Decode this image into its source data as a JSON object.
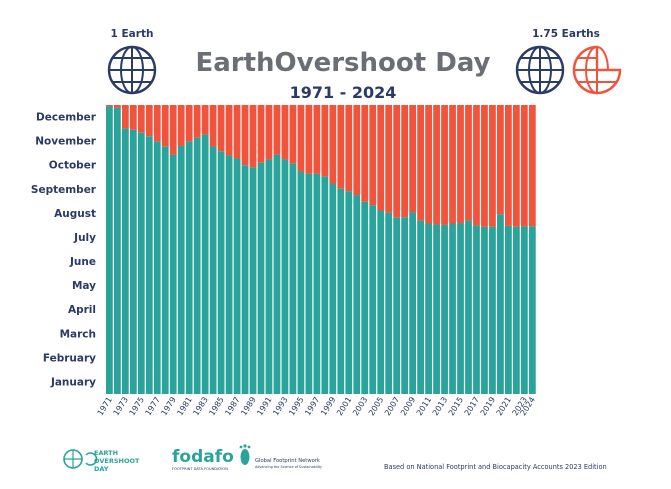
{
  "header": {
    "title": "EarthOvershoot Day",
    "subtitle": "1971 - 2024",
    "left_label": "1 Earth",
    "right_label": "1.75 Earths"
  },
  "footer": {
    "logo1": [
      "EARTH",
      "OVERSHOOT",
      "DAY"
    ],
    "logo2": "fodafo",
    "logo2_sub": "FOOTPRINT DATA FOUNDATION",
    "logo3": "Global Footprint Network",
    "logo3_sub": "Advancing the Science of Sustainability",
    "source": "Based on National Footprint and Biocapacity Accounts 2023 Edition"
  },
  "colors": {
    "navy": "#2b3a67",
    "teal": "#2aa39a",
    "orange": "#f0543c",
    "title": "#6b6f75"
  },
  "chart_data": {
    "type": "bar",
    "stacked_to": "December 31",
    "x": [
      1971,
      1972,
      1973,
      1974,
      1975,
      1976,
      1977,
      1978,
      1979,
      1980,
      1981,
      1982,
      1983,
      1984,
      1985,
      1986,
      1987,
      1988,
      1989,
      1990,
      1991,
      1992,
      1993,
      1994,
      1995,
      1996,
      1997,
      1998,
      1999,
      2000,
      2001,
      2002,
      2003,
      2004,
      2005,
      2006,
      2007,
      2008,
      2009,
      2010,
      2011,
      2012,
      2013,
      2014,
      2015,
      2016,
      2017,
      2018,
      2019,
      2020,
      2021,
      2022,
      2023,
      2024
    ],
    "x_tick_labels": [
      "1971",
      "1973",
      "1975",
      "1977",
      "1979",
      "1981",
      "1983",
      "1985",
      "1987",
      "1989",
      "1991",
      "1993",
      "1995",
      "1997",
      "1999",
      "2001",
      "2003",
      "2005",
      "2007",
      "2009",
      "2011",
      "2013",
      "2015",
      "2017",
      "2019",
      "2021",
      "2023",
      "2024"
    ],
    "y_tick_labels": [
      "January",
      "February",
      "March",
      "April",
      "May",
      "June",
      "July",
      "August",
      "September",
      "October",
      "November",
      "December"
    ],
    "ylim_months": [
      0,
      12
    ],
    "series": [
      {
        "color_key": "teal",
        "values_months": [
          11.94,
          11.88,
          11.02,
          10.97,
          10.85,
          10.7,
          10.48,
          10.27,
          9.94,
          10.3,
          10.48,
          10.64,
          10.78,
          10.28,
          10.08,
          9.9,
          9.78,
          9.5,
          9.4,
          9.6,
          9.74,
          9.94,
          9.74,
          9.56,
          9.24,
          9.14,
          9.14,
          9.04,
          8.74,
          8.52,
          8.42,
          8.26,
          7.98,
          7.84,
          7.62,
          7.52,
          7.32,
          7.34,
          7.54,
          7.2,
          7.08,
          7.04,
          7.02,
          7.08,
          7.1,
          7.2,
          7.0,
          6.94,
          6.94,
          7.46,
          6.98,
          6.94,
          6.96,
          6.96
        ]
      },
      {
        "color_key": "orange",
        "values_months": "remainder to December 31"
      }
    ]
  }
}
